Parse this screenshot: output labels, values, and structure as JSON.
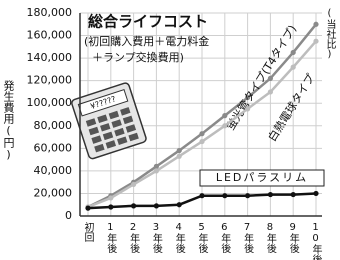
{
  "chart_data": {
    "type": "line",
    "title": "総合ライフコスト",
    "subtitle": [
      "(初回購入費用＋電力料金",
      "＋ランプ交換費用)"
    ],
    "y_label": "発生費用(円)",
    "note": "(当社比)",
    "categories": [
      "初回",
      "1年後",
      "2年後",
      "3年後",
      "4年後",
      "5年後",
      "6年後",
      "7年後",
      "8年後",
      "9年後",
      "10年後"
    ],
    "series": [
      {
        "name": "蛍光管タイプ(T4タイプ)",
        "color": "#8a8a8a",
        "values": [
          8000,
          18000,
          30000,
          44000,
          58000,
          73000,
          89000,
          105000,
          122000,
          145000,
          170000
        ]
      },
      {
        "name": "白熱電球タイプ",
        "color": "#bdbdbd",
        "values": [
          8000,
          16000,
          28000,
          40000,
          53000,
          66000,
          80000,
          95000,
          110000,
          132000,
          155000
        ]
      },
      {
        "name": "LEDパラスリム",
        "color": "#111111",
        "values": [
          7000,
          8000,
          9000,
          9000,
          10000,
          18000,
          18000,
          18000,
          19000,
          19000,
          20000
        ]
      }
    ],
    "ylim": [
      0,
      180000
    ],
    "yticks": [
      0,
      {
        "value": 20000,
        "label": "20,000"
      },
      {
        "value": 40000,
        "label": "40,000"
      },
      {
        "value": 60000,
        "label": "60,000"
      },
      {
        "value": 80000,
        "label": "80,000"
      },
      {
        "value": 100000,
        "label": "100,000"
      },
      {
        "value": 120000,
        "label": "120,000"
      },
      {
        "value": 140000,
        "label": "140,000"
      },
      {
        "value": 160000,
        "label": "160,000"
      },
      {
        "value": 180000,
        "label": "180,000"
      }
    ],
    "grid": true
  },
  "illustration": {
    "display": "¥?????"
  }
}
